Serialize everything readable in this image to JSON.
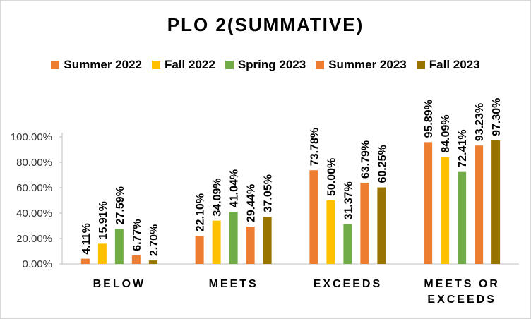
{
  "chart_data": {
    "type": "bar",
    "title": "PLO 2(SUMMATIVE)",
    "categories": [
      "BELOW",
      "MEETS",
      "EXCEEDS",
      "MEETS OR\nEXCEEDS"
    ],
    "series": [
      {
        "name": "Summer 2022",
        "color": "#ED7D31",
        "values": [
          4.11,
          22.1,
          73.78,
          95.89
        ],
        "labels": [
          "4.11%",
          "22.10%",
          "73.78%",
          "95.89%"
        ]
      },
      {
        "name": "Fall 2022",
        "color": "#FFC000",
        "values": [
          15.91,
          34.09,
          50.0,
          84.09
        ],
        "labels": [
          "15.91%",
          "34.09%",
          "50.00%",
          "84.09%"
        ]
      },
      {
        "name": "Spring 2023",
        "color": "#70AD47",
        "values": [
          27.59,
          41.04,
          31.37,
          72.41
        ],
        "labels": [
          "27.59%",
          "41.04%",
          "31.37%",
          "72.41%"
        ]
      },
      {
        "name": "Summer 2023",
        "color": "#ED7D31",
        "values": [
          6.77,
          29.44,
          63.79,
          93.23
        ],
        "labels": [
          "6.77%",
          "29.44%",
          "63.79%",
          "93.23%"
        ]
      },
      {
        "name": "Fall 2023",
        "color": "#997300",
        "values": [
          2.7,
          37.05,
          60.25,
          97.3
        ],
        "labels": [
          "2.70%",
          "37.05%",
          "60.25%",
          "97.30%"
        ]
      }
    ],
    "yticks": [
      "0.00%",
      "20.00%",
      "40.00%",
      "60.00%",
      "80.00%",
      "100.00%"
    ],
    "ylim": [
      0,
      100
    ],
    "grid": false,
    "legend_position": "top"
  }
}
